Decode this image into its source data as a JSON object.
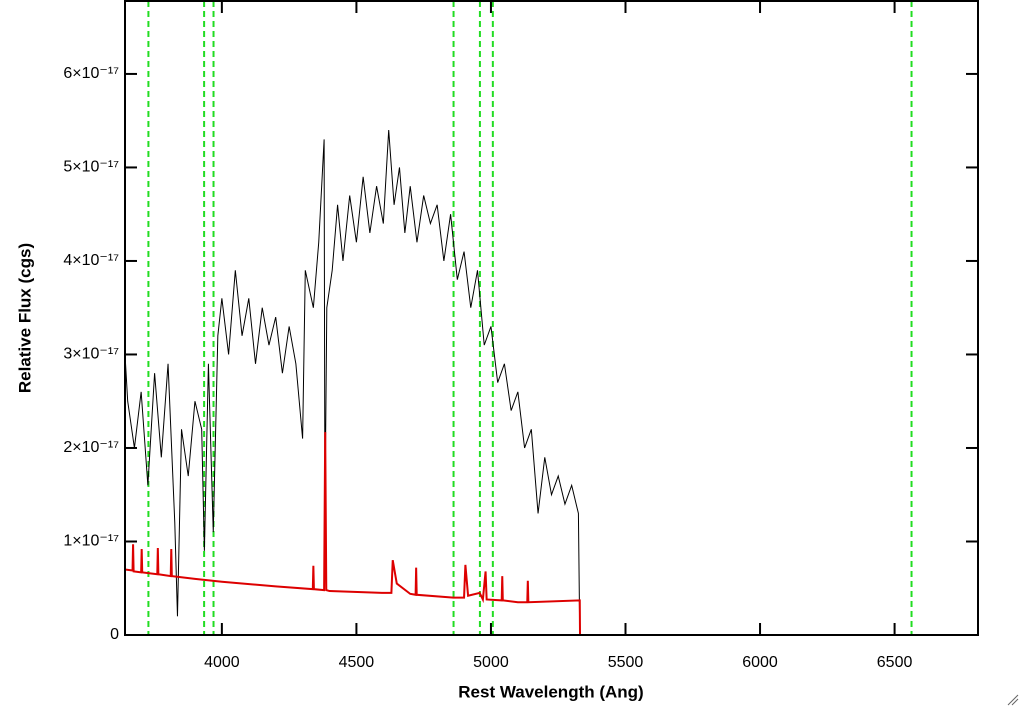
{
  "chart_data": {
    "type": "line",
    "xlabel": "Rest Wavelength (Ang)",
    "ylabel": "Relative Flux (cgs)",
    "xlim": [
      3640,
      6810
    ],
    "ylim": [
      0,
      6.78e-17
    ],
    "xticks": [
      4000,
      4500,
      5000,
      5500,
      6000,
      6500
    ],
    "yticks": [
      0,
      {
        "value": 1e-17,
        "label": "1×10⁻¹⁷"
      },
      {
        "value": 2e-17,
        "label": "2×10⁻¹⁷"
      },
      {
        "value": 3e-17,
        "label": "3×10⁻¹⁷"
      },
      {
        "value": 4e-17,
        "label": "4×10⁻¹⁷"
      },
      {
        "value": 5e-17,
        "label": "5×10⁻¹⁷"
      },
      {
        "value": 6e-17,
        "label": "6×10⁻¹⁷"
      }
    ],
    "vlines": [
      3727,
      3934,
      3969,
      4861,
      4959,
      5007,
      6563
    ],
    "vline_color": "#22dd22",
    "series": [
      {
        "color": "#000000",
        "x": [
          3640,
          3650,
          3675,
          3700,
          3725,
          3750,
          3775,
          3800,
          3825,
          3835,
          3850,
          3875,
          3900,
          3925,
          3935,
          3950,
          3968,
          3985,
          4000,
          4025,
          4050,
          4075,
          4100,
          4125,
          4150,
          4175,
          4200,
          4225,
          4250,
          4275,
          4300,
          4310,
          4340,
          4360,
          4380,
          4383,
          4390,
          4410,
          4430,
          4450,
          4475,
          4500,
          4525,
          4550,
          4575,
          4600,
          4620,
          4640,
          4660,
          4680,
          4700,
          4725,
          4750,
          4775,
          4800,
          4825,
          4850,
          4875,
          4900,
          4925,
          4950,
          4975,
          5000,
          5025,
          5050,
          5075,
          5100,
          5125,
          5150,
          5175,
          5200,
          5225,
          5250,
          5275,
          5300,
          5325,
          5330,
          6810
        ],
        "values": [
          3e-17,
          2.5e-17,
          2e-17,
          2.6e-17,
          1.6e-17,
          2.8e-17,
          1.9e-17,
          2.9e-17,
          1.2e-17,
          2e-18,
          2.2e-17,
          1.7e-17,
          2.5e-17,
          2.2e-17,
          9e-18,
          2.9e-17,
          1.1e-17,
          3.2e-17,
          3.6e-17,
          3e-17,
          3.9e-17,
          3.2e-17,
          3.6e-17,
          2.9e-17,
          3.5e-17,
          3.1e-17,
          3.4e-17,
          2.8e-17,
          3.3e-17,
          2.9e-17,
          2.1e-17,
          3.9e-17,
          3.5e-17,
          4.2e-17,
          5.3e-17,
          1.3e-17,
          3.5e-17,
          3.9e-17,
          4.6e-17,
          4e-17,
          4.7e-17,
          4.2e-17,
          4.9e-17,
          4.3e-17,
          4.8e-17,
          4.4e-17,
          5.4e-17,
          4.6e-17,
          5e-17,
          4.3e-17,
          4.8e-17,
          4.2e-17,
          4.7e-17,
          4.4e-17,
          4.6e-17,
          4e-17,
          4.5e-17,
          3.8e-17,
          4.1e-17,
          3.5e-17,
          3.9e-17,
          3.1e-17,
          3.3e-17,
          2.7e-17,
          2.9e-17,
          2.4e-17,
          2.6e-17,
          2e-17,
          2.2e-17,
          1.3e-17,
          1.9e-17,
          1.5e-17,
          1.7e-17,
          1.4e-17,
          1.6e-17,
          1.3e-17,
          0,
          0
        ]
      },
      {
        "color": "#dd0000",
        "x": [
          3640,
          3668,
          3670,
          3672,
          3700,
          3702,
          3704,
          3760,
          3762,
          3764,
          3810,
          3812,
          3814,
          3900,
          4000,
          4200,
          4338,
          4340,
          4342,
          4380,
          4384,
          4388,
          4400,
          4600,
          4630,
          4635,
          4650,
          4700,
          4720,
          4722,
          4724,
          4860,
          4900,
          4905,
          4915,
          4958,
          4970,
          4980,
          4984,
          5040,
          5042,
          5044,
          5100,
          5135,
          5137,
          5139,
          5330,
          5331,
          6810
        ],
        "values": [
          7e-18,
          6.9e-18,
          9.7e-18,
          6.8e-18,
          6.7e-18,
          9.2e-18,
          6.7e-18,
          6.5e-18,
          9.3e-18,
          6.5e-18,
          6.3e-18,
          9.2e-18,
          6.3e-18,
          6e-18,
          5.7e-18,
          5.2e-18,
          4.9e-18,
          7.4e-18,
          4.9e-18,
          4.8e-18,
          2.17e-17,
          4.8e-18,
          4.7e-18,
          4.5e-18,
          4.5e-18,
          8e-18,
          5.5e-18,
          4.4e-18,
          4.3e-18,
          7.2e-18,
          4.3e-18,
          4e-18,
          4e-18,
          7.5e-18,
          4.2e-18,
          4.5e-18,
          3.8e-18,
          6.8e-18,
          3.8e-18,
          3.7e-18,
          6.3e-18,
          3.7e-18,
          3.5e-18,
          3.5e-18,
          5.8e-18,
          3.5e-18,
          3.7e-18,
          0,
          0
        ]
      }
    ]
  }
}
